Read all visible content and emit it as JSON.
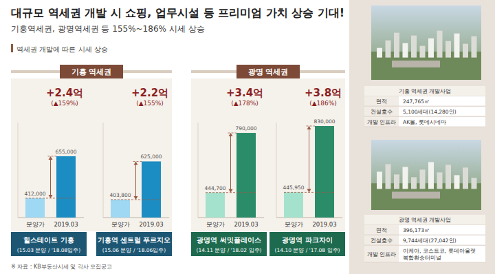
{
  "header": {
    "title": "대규모 역세권 개발 시 쇼핑, 업무시설 등 프리미엄 가치 상승 기대!",
    "subtitle": "기흥역세권, 광명역세권 등 155%~186% 시세 상승"
  },
  "section_label": "역세권 개발에 따른 시세 상승",
  "groups": [
    "기흥 역세권",
    "광명 역세권"
  ],
  "chart_data": [
    {
      "type": "bar",
      "title": "힐스테이트 기흥",
      "subtitle": "(15.03 분양 / '18.08입주)",
      "categories": [
        "분양가",
        "2019.03"
      ],
      "values": [
        412000,
        655000
      ],
      "value_labels": [
        "412,000",
        "655,000"
      ],
      "colors": [
        "#9ed8f2",
        "#1b8dc2"
      ],
      "ylim": [
        300000,
        850000
      ],
      "data_labels": true,
      "tick_labels": "x",
      "annotations": [
        "+2.4억",
        "(▲159%)"
      ]
    },
    {
      "type": "bar",
      "title": "기흥역 센트럴 푸르지오",
      "subtitle": "(15.06 분양 / '18.06입주)",
      "categories": [
        "분양가",
        "2019.03"
      ],
      "values": [
        403800,
        625000
      ],
      "value_labels": [
        "403,800",
        "625,000"
      ],
      "colors": [
        "#9ed8f2",
        "#1b8dc2"
      ],
      "ylim": [
        300000,
        850000
      ],
      "data_labels": true,
      "tick_labels": "x",
      "annotations": [
        "+2.2억",
        "(▲155%)"
      ]
    },
    {
      "type": "bar",
      "title": "광명역 써밋플레이스",
      "subtitle": "(14.11 분양 / '18.02 입주)",
      "categories": [
        "분양가",
        "2019.03"
      ],
      "values": [
        444700,
        790000
      ],
      "value_labels": [
        "444,700",
        "790,000"
      ],
      "colors": [
        "#a5e2cd",
        "#2a8c69"
      ],
      "ylim": [
        300000,
        850000
      ],
      "data_labels": true,
      "tick_labels": "x",
      "annotations": [
        "+3.4억",
        "(▲178%)"
      ]
    },
    {
      "type": "bar",
      "title": "광명역 파크자이",
      "subtitle": "(14.10 분양 / '17.08 입주)",
      "categories": [
        "분양가",
        "2019.03"
      ],
      "values": [
        445950,
        830000
      ],
      "value_labels": [
        "445,950",
        "830,000"
      ],
      "colors": [
        "#a5e2cd",
        "#2a8c69"
      ],
      "ylim": [
        300000,
        850000
      ],
      "data_labels": true,
      "tick_labels": "x",
      "annotations": [
        "+3.8억",
        "(▲186%)"
      ]
    }
  ],
  "source": "※ 자료 : KB부동산시세 및 각사 모집공고",
  "panels": [
    {
      "title": "기흥 역세권 개발사업",
      "rows": [
        {
          "label": "면적",
          "value": [
            "247,765㎡"
          ]
        },
        {
          "label": "건설호수",
          "value": [
            "5,100세대(14,280인)"
          ]
        },
        {
          "label": "개발 인프라",
          "value": [
            "AK몰, 롯데시네마"
          ]
        }
      ]
    },
    {
      "title": "광명 역세권 개발사업",
      "rows": [
        {
          "label": "면적",
          "value": [
            "396,173㎡"
          ]
        },
        {
          "label": "건설호수",
          "value": [
            "9,744세대(27,042인)"
          ]
        },
        {
          "label": "개발 인프라",
          "value": [
            "이케아, 코스트코, 롯데아울렛",
            "복합환승터미널"
          ]
        }
      ]
    }
  ]
}
